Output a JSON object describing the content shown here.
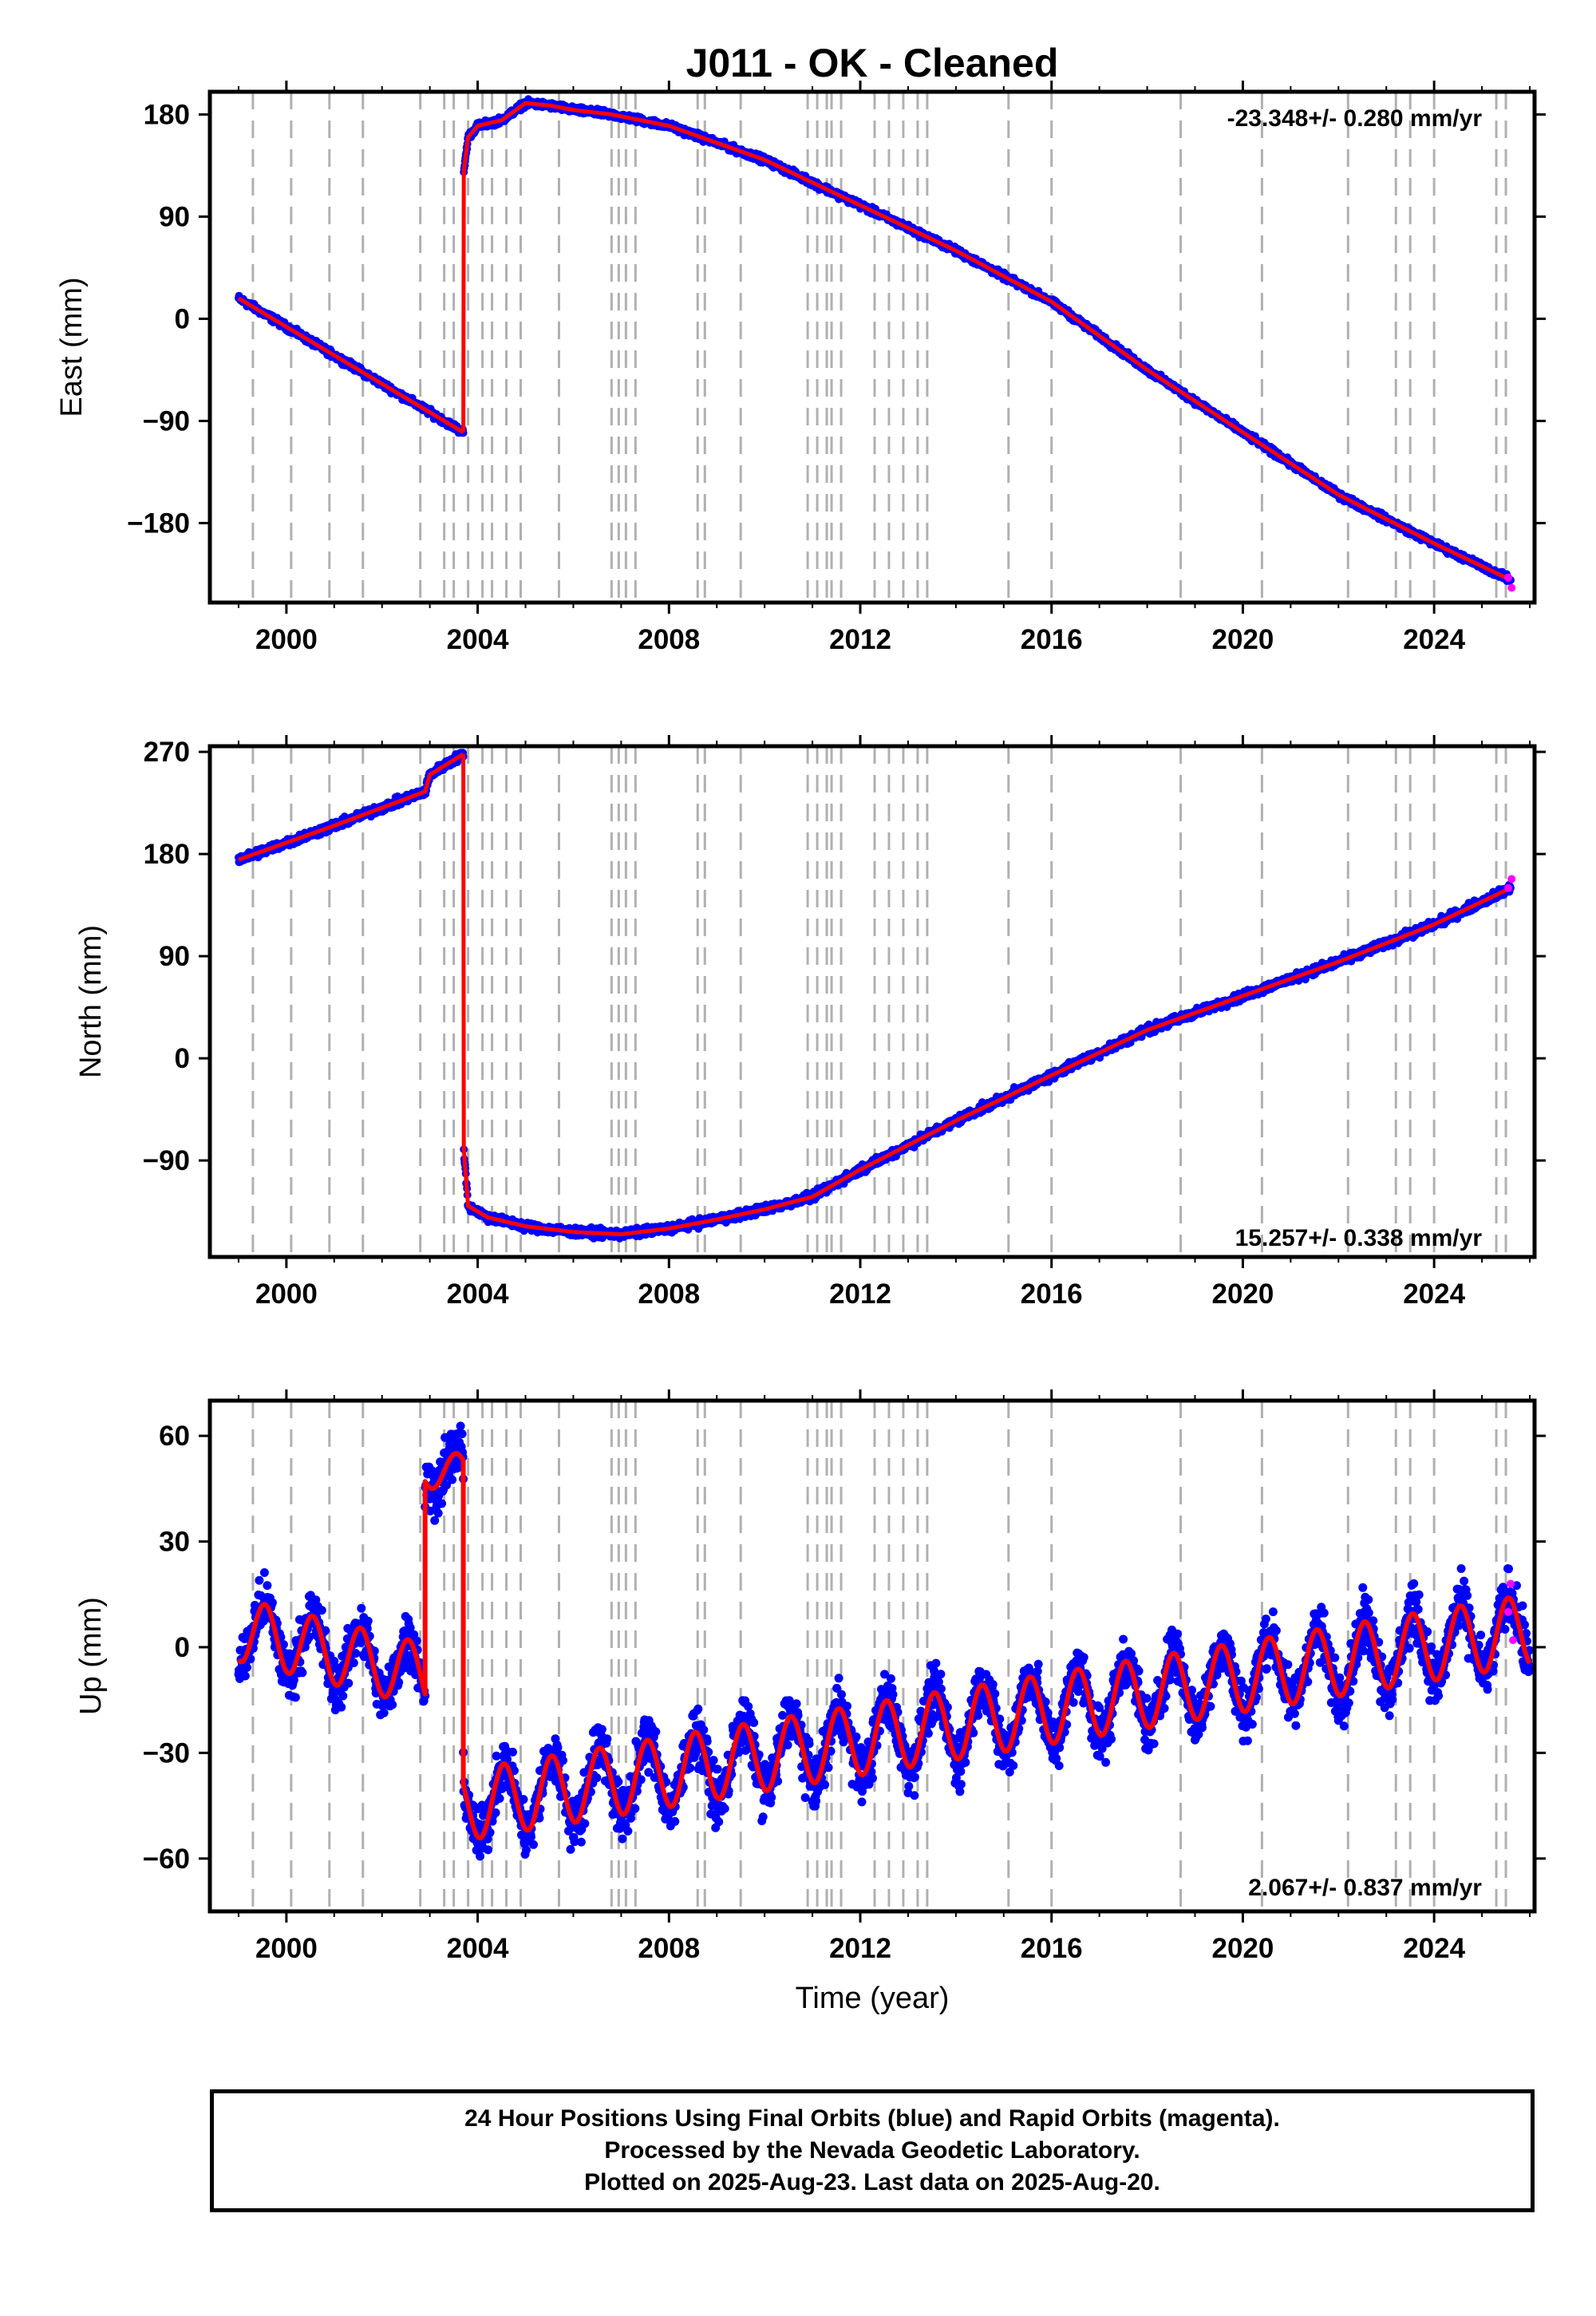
{
  "title": "J011  - OK - Cleaned",
  "footer": {
    "line1": "24 Hour Positions Using Final Orbits (blue) and Rapid Orbits (magenta).",
    "line2": "Processed by the Nevada Geodetic Laboratory.",
    "line3": "Plotted on 2025-Aug-23. Last data on 2025-Aug-20."
  },
  "colors": {
    "final_orbits": "#0000ff",
    "rapid_orbits": "#ff00ff",
    "model_fit": "#ff0000",
    "event_lines": "#b0b0b0"
  },
  "xlabel": "Time (year)",
  "chart_data": [
    {
      "type": "scatter",
      "ylabel": "East (mm)",
      "rate": "-23.348+/- 0.280 mm/yr",
      "xlim": [
        1998.4,
        2026.1
      ],
      "ylim": [
        -250,
        200
      ],
      "xticks": [
        "2000",
        "2004",
        "2008",
        "2012",
        "2016",
        "2020",
        "2024"
      ],
      "yticks": [
        "180",
        "90",
        "0",
        "−90",
        "−180"
      ],
      "ytick_values": [
        180,
        90,
        0,
        -90,
        -180
      ],
      "series": [
        {
          "role": "fit",
          "x": [
            1999.0,
            2003.7
          ],
          "y": [
            18,
            -100
          ]
        },
        {
          "role": "fit",
          "x": [
            2003.71,
            2003.8,
            2004.0,
            2004.5,
            2005.0,
            2005.5,
            2006.0,
            2006.8,
            2008.0,
            2010.0,
            2012.0,
            2014.0,
            2016.0,
            2018.0,
            2020.0,
            2022.0,
            2024.0,
            2025.6
          ],
          "y": [
            130,
            160,
            170,
            175,
            190,
            188,
            184,
            180,
            170,
            140,
            100,
            60,
            15,
            -45,
            -100,
            -155,
            -198,
            -230
          ]
        }
      ],
      "rapid": {
        "x": [
          2025.55,
          2025.62
        ],
        "y": [
          -228,
          -237
        ]
      }
    },
    {
      "type": "scatter",
      "ylabel": "North (mm)",
      "rate": "15.257+/- 0.338 mm/yr",
      "xlim": [
        1998.4,
        2026.1
      ],
      "ylim": [
        -175,
        275
      ],
      "xticks": [
        "2000",
        "2004",
        "2008",
        "2012",
        "2016",
        "2020",
        "2024"
      ],
      "yticks": [
        "270",
        "180",
        "90",
        "0",
        "−90"
      ],
      "ytick_values": [
        270,
        180,
        90,
        0,
        -90
      ],
      "series": [
        {
          "role": "fit",
          "x": [
            1999.0,
            2001.0,
            2002.9,
            2003.0,
            2003.7
          ],
          "y": [
            175,
            205,
            235,
            250,
            268
          ]
        },
        {
          "role": "fit",
          "x": [
            2003.71,
            2003.8,
            2004.2,
            2005.0,
            2006.0,
            2007.0,
            2008.0,
            2009.0,
            2010.0,
            2011.0,
            2012.0,
            2014.0,
            2016.0,
            2018.0,
            2020.0,
            2022.0,
            2024.0,
            2025.6
          ],
          "y": [
            -80,
            -130,
            -140,
            -148,
            -153,
            -155,
            -150,
            -142,
            -133,
            -122,
            -98,
            -55,
            -15,
            25,
            55,
            85,
            118,
            150
          ]
        }
      ],
      "rapid": {
        "x": [
          2025.55,
          2025.62
        ],
        "y": [
          150,
          158
        ]
      }
    },
    {
      "type": "scatter",
      "ylabel": "Up (mm)",
      "rate": "2.067+/- 0.837 mm/yr",
      "xlim": [
        1998.4,
        2026.1
      ],
      "ylim": [
        -75,
        70
      ],
      "xticks": [
        "2000",
        "2004",
        "2008",
        "2012",
        "2016",
        "2020",
        "2024"
      ],
      "yticks": [
        "60",
        "30",
        "0",
        "−30",
        "−60"
      ],
      "ytick_values": [
        60,
        30,
        0,
        -30,
        -60
      ],
      "segments": [
        {
          "x0": 1999.0,
          "x1": 2002.9,
          "b0": 5,
          "b1": -8,
          "amp": 9
        },
        {
          "x0": 2002.9,
          "x1": 2003.7,
          "b0": 50,
          "b1": 50,
          "amp": 5
        },
        {
          "x0": 2003.7,
          "x1": 2026.0,
          "b0": -45,
          "b1": 5,
          "amp": 10
        }
      ],
      "rapid": {
        "x": [
          2025.55,
          2025.6,
          2025.65
        ],
        "y": [
          10,
          18,
          2
        ]
      }
    }
  ],
  "event_lines_years": [
    1999.3,
    2000.1,
    2000.9,
    2001.6,
    2002.8,
    2003.3,
    2003.5,
    2003.8,
    2004.1,
    2004.3,
    2004.6,
    2004.9,
    2005.7,
    2006.8,
    2006.95,
    2007.1,
    2007.3,
    2008.6,
    2008.75,
    2009.5,
    2010.9,
    2011.1,
    2011.3,
    2011.4,
    2011.6,
    2012.3,
    2012.6,
    2012.9,
    2013.2,
    2013.4,
    2015.1,
    2016.0,
    2018.7,
    2020.4,
    2022.2,
    2023.2,
    2023.5,
    2024.0,
    2025.3,
    2025.5
  ]
}
